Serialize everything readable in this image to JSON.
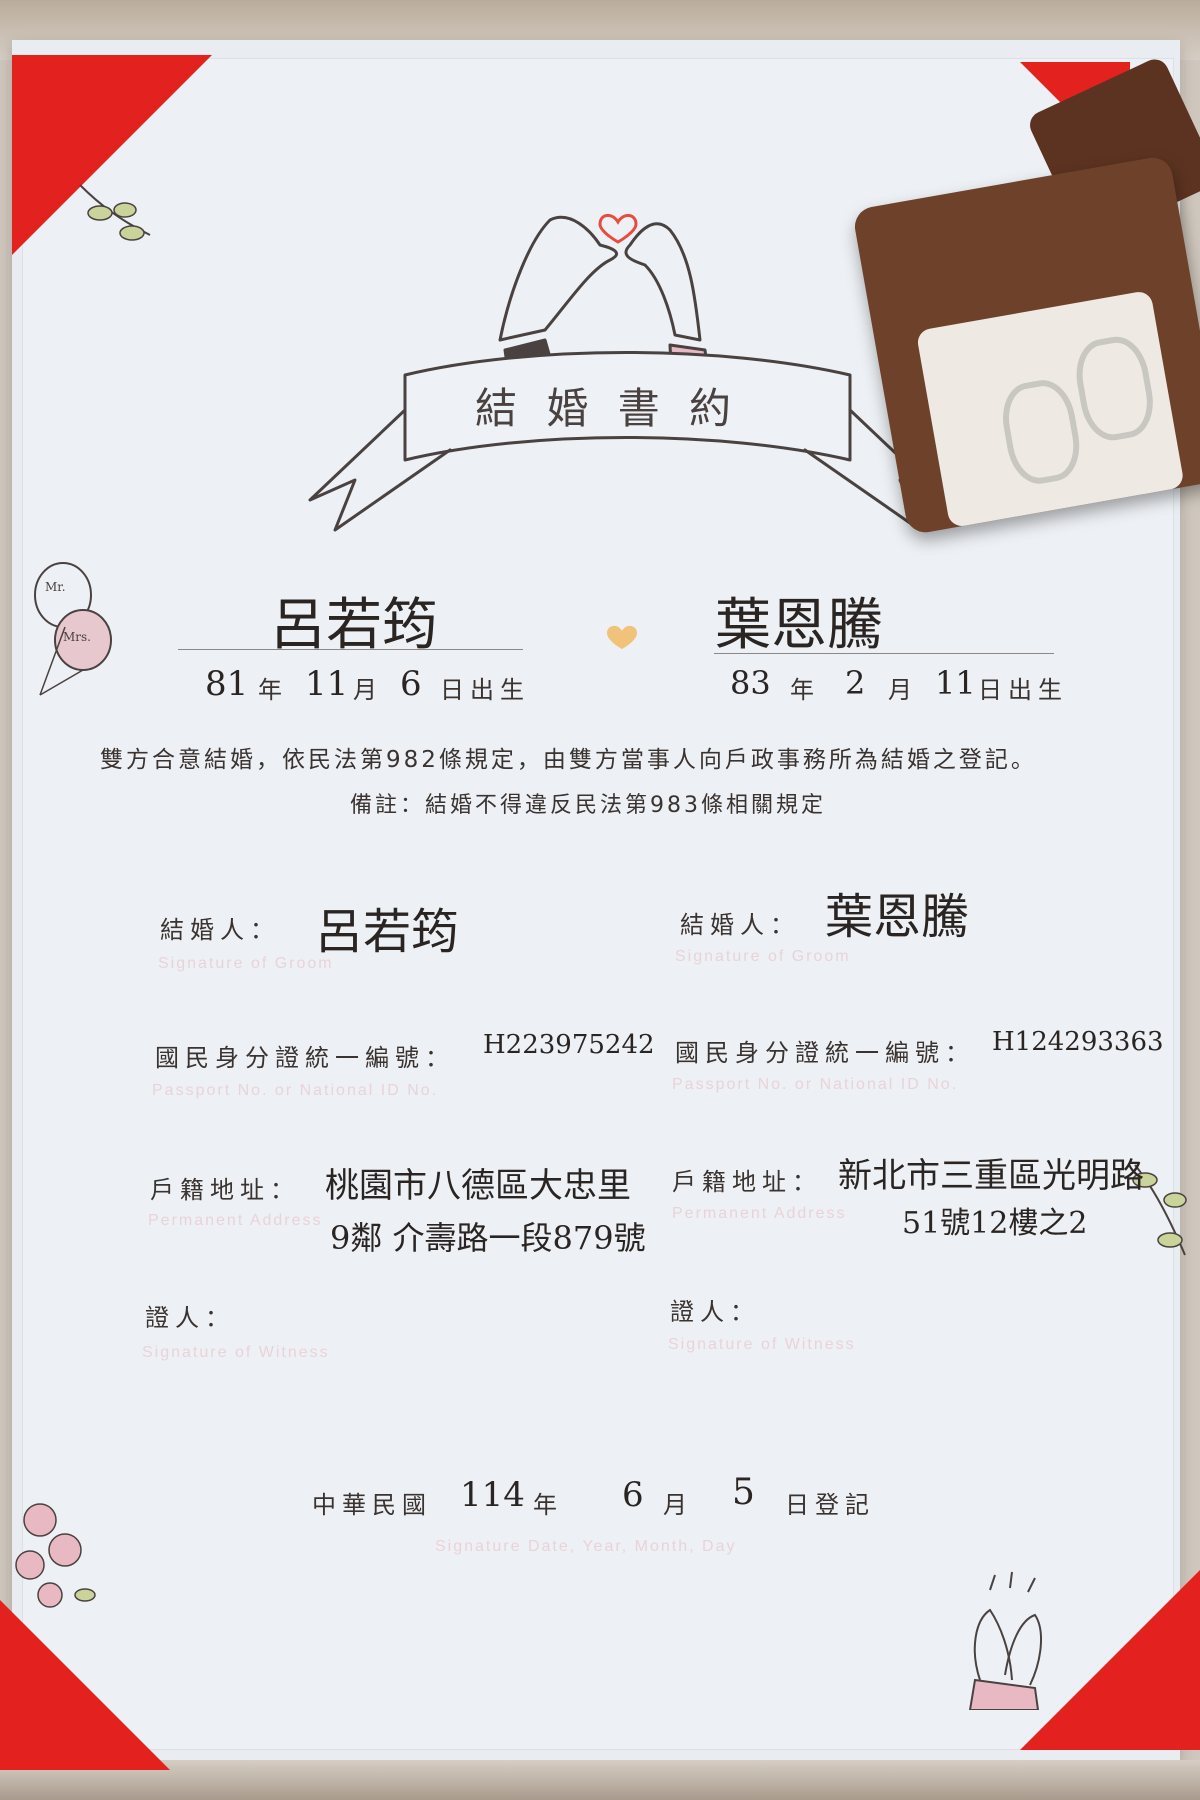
{
  "certificate": {
    "title": "結 婚 書 約",
    "party_left": {
      "name": "呂若筠",
      "birth_year": "81",
      "birth_month": "11",
      "birth_day": "6",
      "signature": "呂若筠",
      "id_number": "H223975242",
      "address_line1": "桃園市八德區大忠里",
      "address_line2": "9鄰 介壽路一段879號"
    },
    "party_right": {
      "name": "葉恩騰",
      "birth_year": "83",
      "birth_month": "2",
      "birth_day": "11",
      "signature": "葉恩騰",
      "id_number": "H124293363",
      "address_line1": "新北市三重區光明路",
      "address_line2": "51號12樓之2"
    },
    "labels": {
      "year": "年",
      "month": "月",
      "birth_suffix": "日出生",
      "statement": "雙方合意結婚，依民法第982條規定，由雙方當事人向戶政事務所為結婚之登記。",
      "note": "備註：結婚不得違反民法第983條相關規定",
      "groom_label": "結婚人：",
      "groom_sub": "Signature of Groom",
      "id_label": "國民身分證統一編號：",
      "id_sub": "Passport No. or National ID No.",
      "address_label": "戶籍地址：",
      "address_sub": "Permanent Address",
      "witness_label": "證人：",
      "witness_sub": "Signature of Witness",
      "date_prefix": "中華民國",
      "date_suffix": "日登記",
      "date_sub": "Signature Date, Year, Month, Day",
      "mr": "Mr.",
      "mrs": "Mrs."
    },
    "registration": {
      "year": "114",
      "month": "6",
      "day": "5"
    }
  },
  "colors": {
    "corner_red": "#e3221f",
    "ink": "#2a2522",
    "pink": "#e8b9c3",
    "heart": "#f0c27a"
  }
}
